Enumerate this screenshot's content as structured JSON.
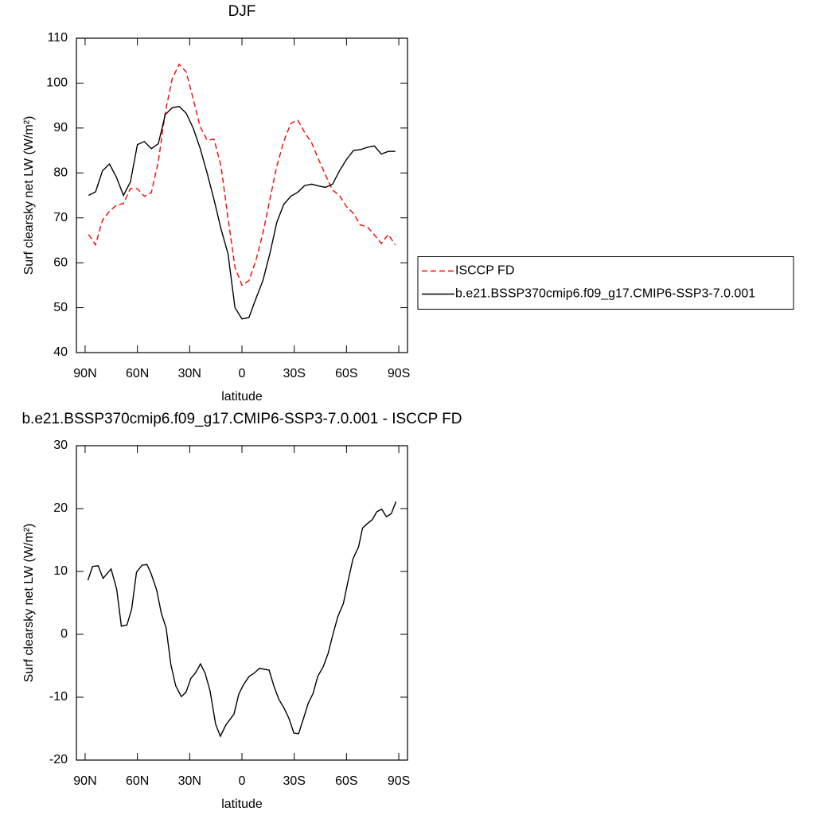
{
  "chart_data": [
    {
      "type": "line",
      "title": "DJF",
      "xlabel": "latitude",
      "ylabel": "Surf clearsky net LW (W/m²)",
      "x": [
        88,
        84,
        80,
        76,
        72,
        68,
        64,
        60,
        56,
        52,
        48,
        44,
        40,
        36,
        32,
        28,
        24,
        20,
        16,
        12,
        8,
        4,
        0,
        -4,
        -8,
        -12,
        -16,
        -20,
        -24,
        -28,
        -32,
        -36,
        -40,
        -44,
        -48,
        -52,
        -56,
        -60,
        -64,
        -68,
        -72,
        -76,
        -80,
        -84,
        -88
      ],
      "series": [
        {
          "name": "ISCCP FD",
          "color": "#ff0000",
          "style": "dashed",
          "values": [
            66.3,
            64,
            69.5,
            71.5,
            72.8,
            73.2,
            76.5,
            76.5,
            74.8,
            75.6,
            82.5,
            93.5,
            101,
            104.2,
            102.5,
            96.5,
            90.3,
            87.3,
            87.5,
            81.5,
            70,
            59,
            55,
            56,
            60.5,
            66.5,
            74,
            81.5,
            87,
            91,
            91.8,
            89,
            86.7,
            83,
            79.5,
            76.2,
            75,
            72.5,
            71,
            68.4,
            68,
            66.2,
            64.3,
            66.3,
            64
          ]
        },
        {
          "name": "b.e21.BSSP370cmip6.f09_g17.CMIP6-SSP3-7.0.001",
          "color": "#000000",
          "style": "solid",
          "values": [
            75,
            75.8,
            80.5,
            82,
            79,
            75,
            78,
            86.3,
            87,
            85.4,
            86.5,
            93,
            94.5,
            94.8,
            93.3,
            90,
            85.5,
            80,
            74,
            67.5,
            62,
            50,
            47.5,
            47.8,
            52,
            56,
            62,
            69,
            73,
            74.8,
            75.7,
            77.2,
            77.5,
            77.1,
            76.8,
            77.5,
            80.5,
            83,
            85,
            85.2,
            85.7,
            86,
            84.2,
            84.8,
            84.8
          ]
        }
      ],
      "xlim": [
        95,
        -95
      ],
      "xticks": [
        {
          "value": 90,
          "label": "90N"
        },
        {
          "value": 60,
          "label": "60N"
        },
        {
          "value": 30,
          "label": "30N"
        },
        0,
        {
          "value": -30,
          "label": "30S"
        },
        {
          "value": -60,
          "label": "60S"
        },
        {
          "value": -90,
          "label": "90S"
        }
      ],
      "ylim": [
        40,
        110
      ],
      "yticks": [
        40,
        50,
        60,
        70,
        80,
        90,
        100,
        110
      ],
      "grid": false,
      "legend": "right"
    },
    {
      "type": "line",
      "title": "b.e21.BSSP370cmip6.f09_g17.CMIP6-SSP3-7.0.001 - ISCCP FD",
      "xlabel": "latitude",
      "ylabel": "Surf clearsky net LW (W/m²)",
      "x": [
        88.4,
        85.7,
        82.5,
        79.7,
        75.1,
        71.9,
        69.2,
        66.0,
        63.3,
        60.5,
        57.3,
        54.5,
        52.2,
        49.0,
        46.3,
        43.5,
        40.8,
        38.0,
        34.8,
        32.1,
        29.3,
        26.6,
        23.8,
        21.1,
        18.3,
        15.1,
        12.4,
        9.2,
        4.6,
        1.8,
        -0.9,
        -4.1,
        -6.9,
        -10.1,
        -15.6,
        -18.3,
        -21.1,
        -24.3,
        -27.0,
        -29.8,
        -32.5,
        -35.3,
        -38.0,
        -40.8,
        -43.5,
        -46.7,
        -49.5,
        -52.2,
        -55.0,
        -58.2,
        -60.9,
        -63.7,
        -66.9,
        -69.2,
        -71.9,
        -74.7,
        -77.4,
        -80.2,
        -82.9,
        -85.7,
        -88.4
      ],
      "values": [
        8.6,
        10.8,
        10.9,
        8.9,
        10.4,
        7.2,
        1.3,
        1.5,
        4,
        9.9,
        11,
        11.1,
        9.7,
        7.1,
        3.4,
        1,
        -4.8,
        -8.2,
        -9.9,
        -9.2,
        -7,
        -6.1,
        -4.7,
        -6.2,
        -9,
        -14.3,
        -16.2,
        -14.4,
        -12.7,
        -9.5,
        -8,
        -6.7,
        -6.2,
        -5.4,
        -5.7,
        -8.2,
        -10.3,
        -11.8,
        -13.4,
        -15.7,
        -15.8,
        -13.4,
        -11,
        -9.4,
        -6.7,
        -5.1,
        -3,
        0,
        2.8,
        4.9,
        8.5,
        12,
        13.9,
        16.9,
        17.6,
        18.2,
        19.5,
        19.9,
        18.7,
        19.2,
        21.1
      ],
      "color": "#000000",
      "style": "solid",
      "xlim": [
        95,
        -95
      ],
      "xticks": [
        {
          "value": 90,
          "label": "90N"
        },
        {
          "value": 60,
          "label": "60N"
        },
        {
          "value": 30,
          "label": "30N"
        },
        0,
        {
          "value": -30,
          "label": "30S"
        },
        {
          "value": -60,
          "label": "60S"
        },
        {
          "value": -90,
          "label": "90S"
        }
      ],
      "ylim": [
        -20,
        30
      ],
      "yticks": [
        -20,
        -10,
        0,
        10,
        20,
        30
      ],
      "grid": false
    }
  ]
}
